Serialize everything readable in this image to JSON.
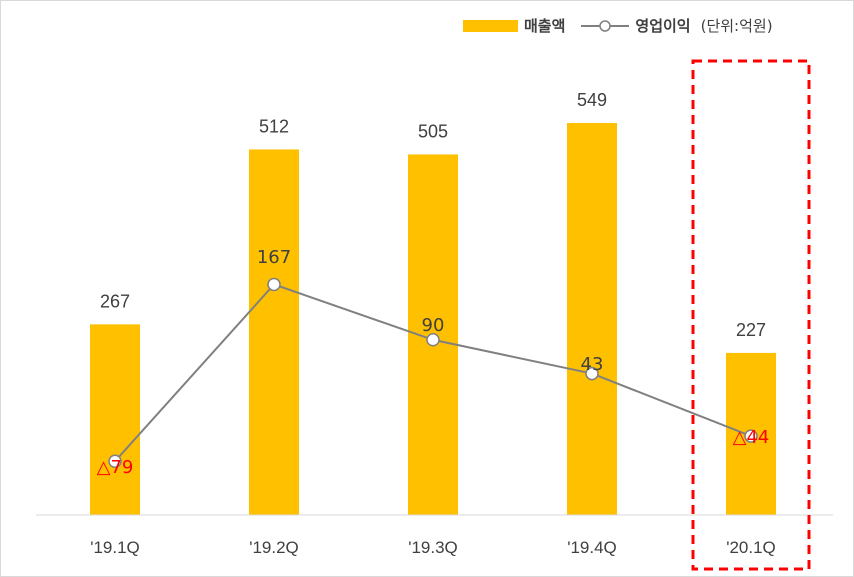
{
  "chart_data": {
    "type": "bar",
    "categories": [
      "'19.1Q",
      "'19.2Q",
      "'19.3Q",
      "'19.4Q",
      "'20.1Q"
    ],
    "series": [
      {
        "name": "매출액",
        "kind": "bar",
        "color": "#FFC000",
        "values": [
          267,
          512,
          505,
          549,
          227
        ],
        "labels": [
          "267",
          "512",
          "505",
          "549",
          "227"
        ]
      },
      {
        "name": "영업이익",
        "kind": "line",
        "color": "#808080",
        "values": [
          -79,
          167,
          90,
          43,
          -44
        ],
        "labels": [
          "△79",
          "167",
          "90",
          "43",
          "△44"
        ]
      }
    ],
    "unit_label": "(단위:억원)",
    "negative_label_color": "#FF0000",
    "label_color": "#404040",
    "highlight": {
      "category": "'20.1Q",
      "style": "red dashed box"
    },
    "ylim_bar": [
      0,
      600
    ],
    "ylim_line": [
      -100,
      300
    ],
    "grid": false,
    "legend_position": "top-right"
  }
}
